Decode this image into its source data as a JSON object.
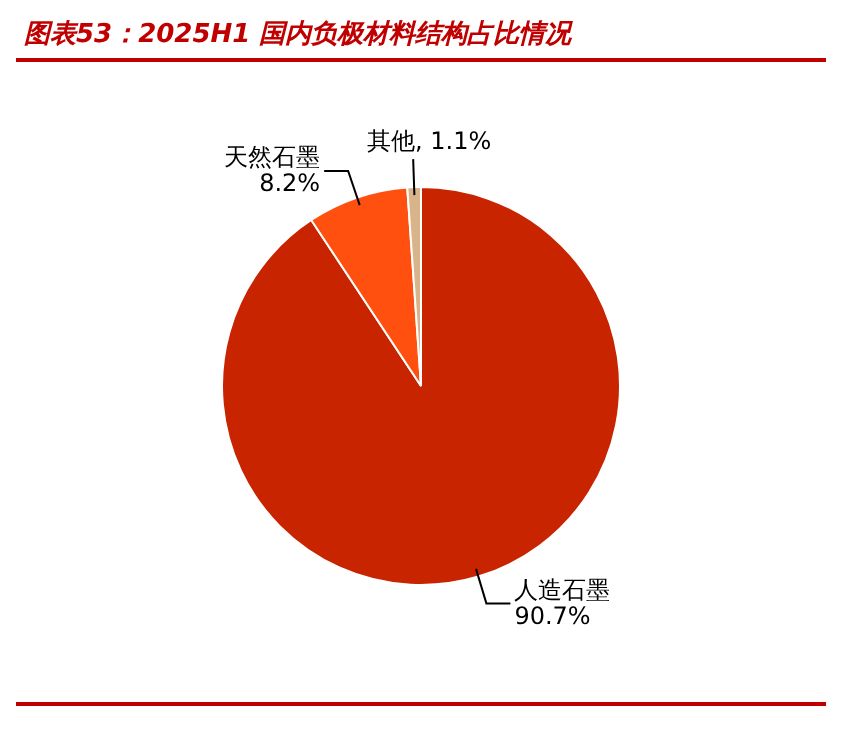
{
  "chart_data": {
    "type": "pie",
    "title": "图表53：2025H1 国内负极材料结构占比情况",
    "categories": [
      "人造石墨",
      "天然石墨",
      "其他"
    ],
    "values": [
      90.7,
      8.2,
      1.1
    ],
    "value_labels": [
      "90.7%",
      "8.2%",
      "1.1%"
    ],
    "colors": [
      "#c82400",
      "#ff5010",
      "#d9b48a"
    ],
    "legend": false
  }
}
